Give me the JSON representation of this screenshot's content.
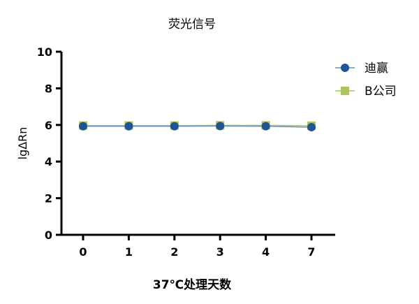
{
  "chart_data": {
    "type": "line",
    "title": "荧光信号",
    "xlabel": "37℃处理天数",
    "ylabel": "lgΔRn",
    "categories": [
      "0",
      "1",
      "2",
      "3",
      "4",
      "7"
    ],
    "ylim": [
      0,
      10
    ],
    "yticks": [
      "0",
      "2",
      "4",
      "6",
      "8",
      "10"
    ],
    "grid": false,
    "legend_position": "top-right",
    "series": [
      {
        "name": "迪赢",
        "marker": "circle",
        "color": "#1f5592",
        "line_color": "#6b8fb5",
        "values": [
          5.93,
          5.93,
          5.93,
          5.94,
          5.93,
          5.88
        ]
      },
      {
        "name": "B公司",
        "marker": "square",
        "color": "#a8c95a",
        "line_color": "#a8c95a",
        "values": [
          5.97,
          5.97,
          5.97,
          5.98,
          5.98,
          5.96
        ]
      }
    ]
  }
}
